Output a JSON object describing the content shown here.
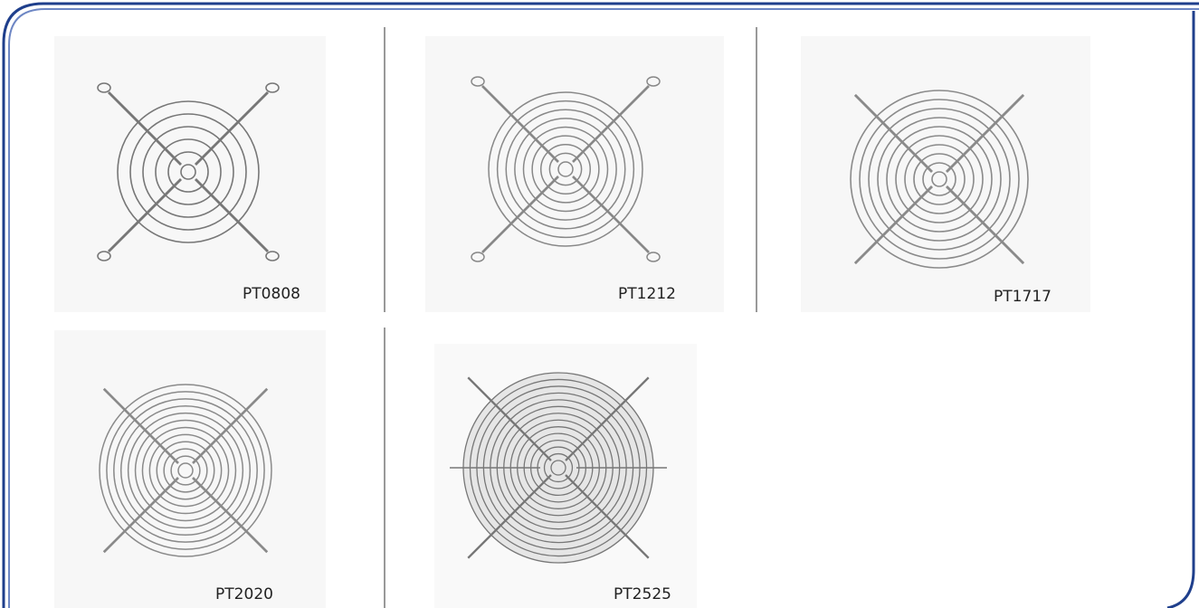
{
  "products": [
    {
      "label": "PT0808"
    },
    {
      "label": "PT1212"
    },
    {
      "label": "PT1717"
    },
    {
      "label": "PT2020"
    },
    {
      "label": "PT2525"
    }
  ]
}
